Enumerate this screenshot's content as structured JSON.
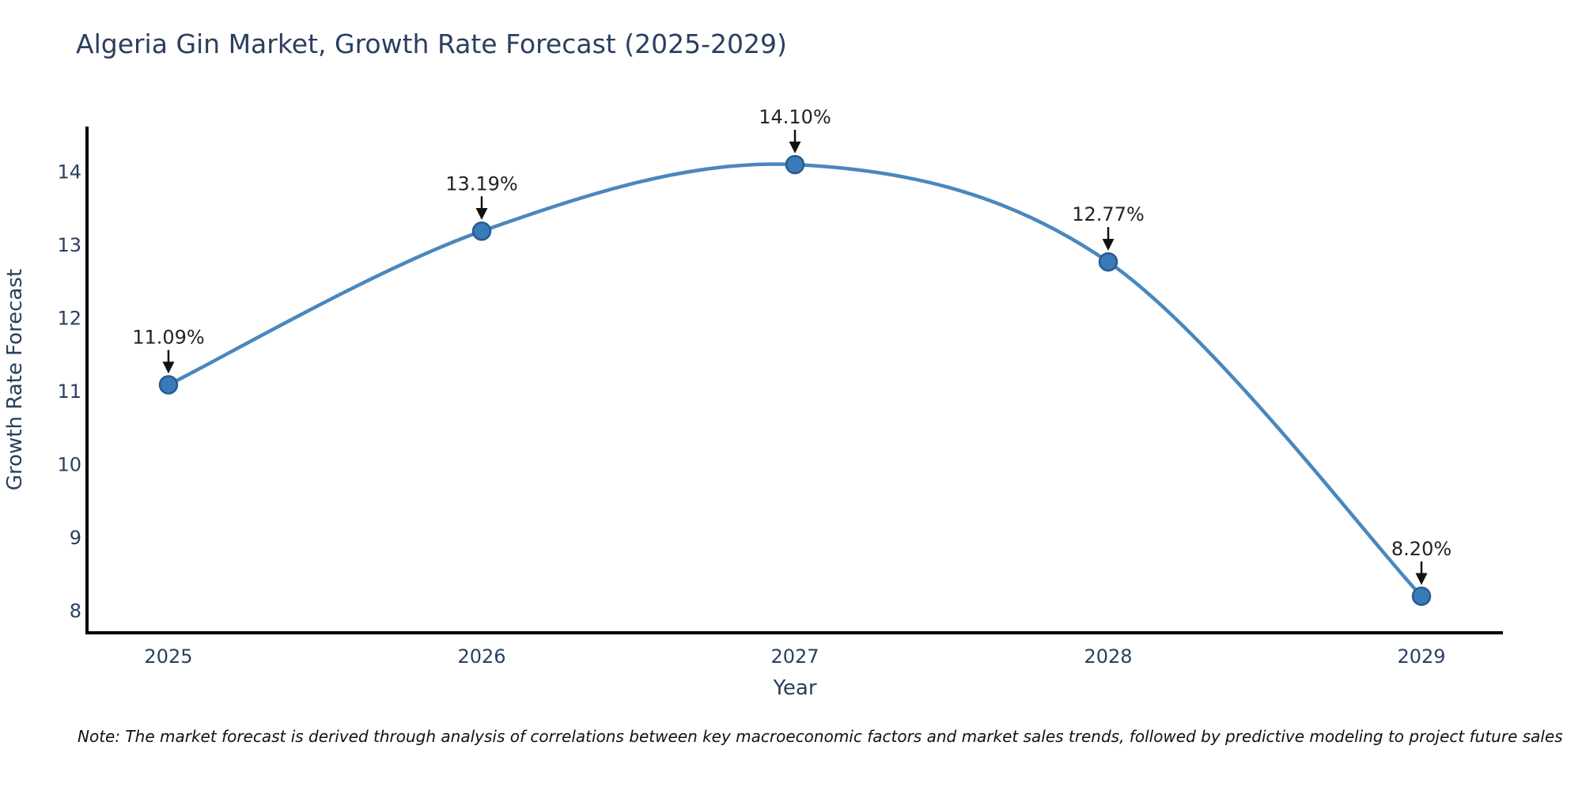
{
  "title": "Algeria Gin Market, Growth Rate Forecast (2025-2029)",
  "note": "Note: The market forecast is derived through analysis of correlations between key macroeconomic factors and market sales trends, followed by predictive modeling to project future sales",
  "chart_data": {
    "type": "line",
    "title": "Algeria Gin Market, Growth Rate Forecast (2025-2029)",
    "xlabel": "Year",
    "ylabel": "Growth Rate Forecast",
    "x": [
      2025,
      2026,
      2027,
      2028,
      2029
    ],
    "values": [
      11.09,
      13.19,
      14.1,
      12.77,
      8.2
    ],
    "point_labels": [
      "11.09%",
      "13.19%",
      "14.10%",
      "12.77%",
      "8.20%"
    ],
    "x_ticks": [
      "2025",
      "2026",
      "2027",
      "2028",
      "2029"
    ],
    "y_ticks": [
      "8",
      "9",
      "10",
      "11",
      "12",
      "13",
      "14"
    ],
    "y_tick_values": [
      8,
      9,
      10,
      11,
      12,
      13,
      14
    ],
    "xlim": [
      2024.74,
      2029.26
    ],
    "ylim": [
      7.7,
      14.62
    ],
    "line_shape": "spline",
    "grid": false,
    "legend": "none",
    "colors": {
      "line": "#4a87bd",
      "marker_fill": "#3a7ab8",
      "marker_stroke": "#275d8f",
      "axis": "#000000",
      "tick_text": "#2a3f5f",
      "annotation_text": "#222222",
      "arrow": "#111111"
    }
  }
}
